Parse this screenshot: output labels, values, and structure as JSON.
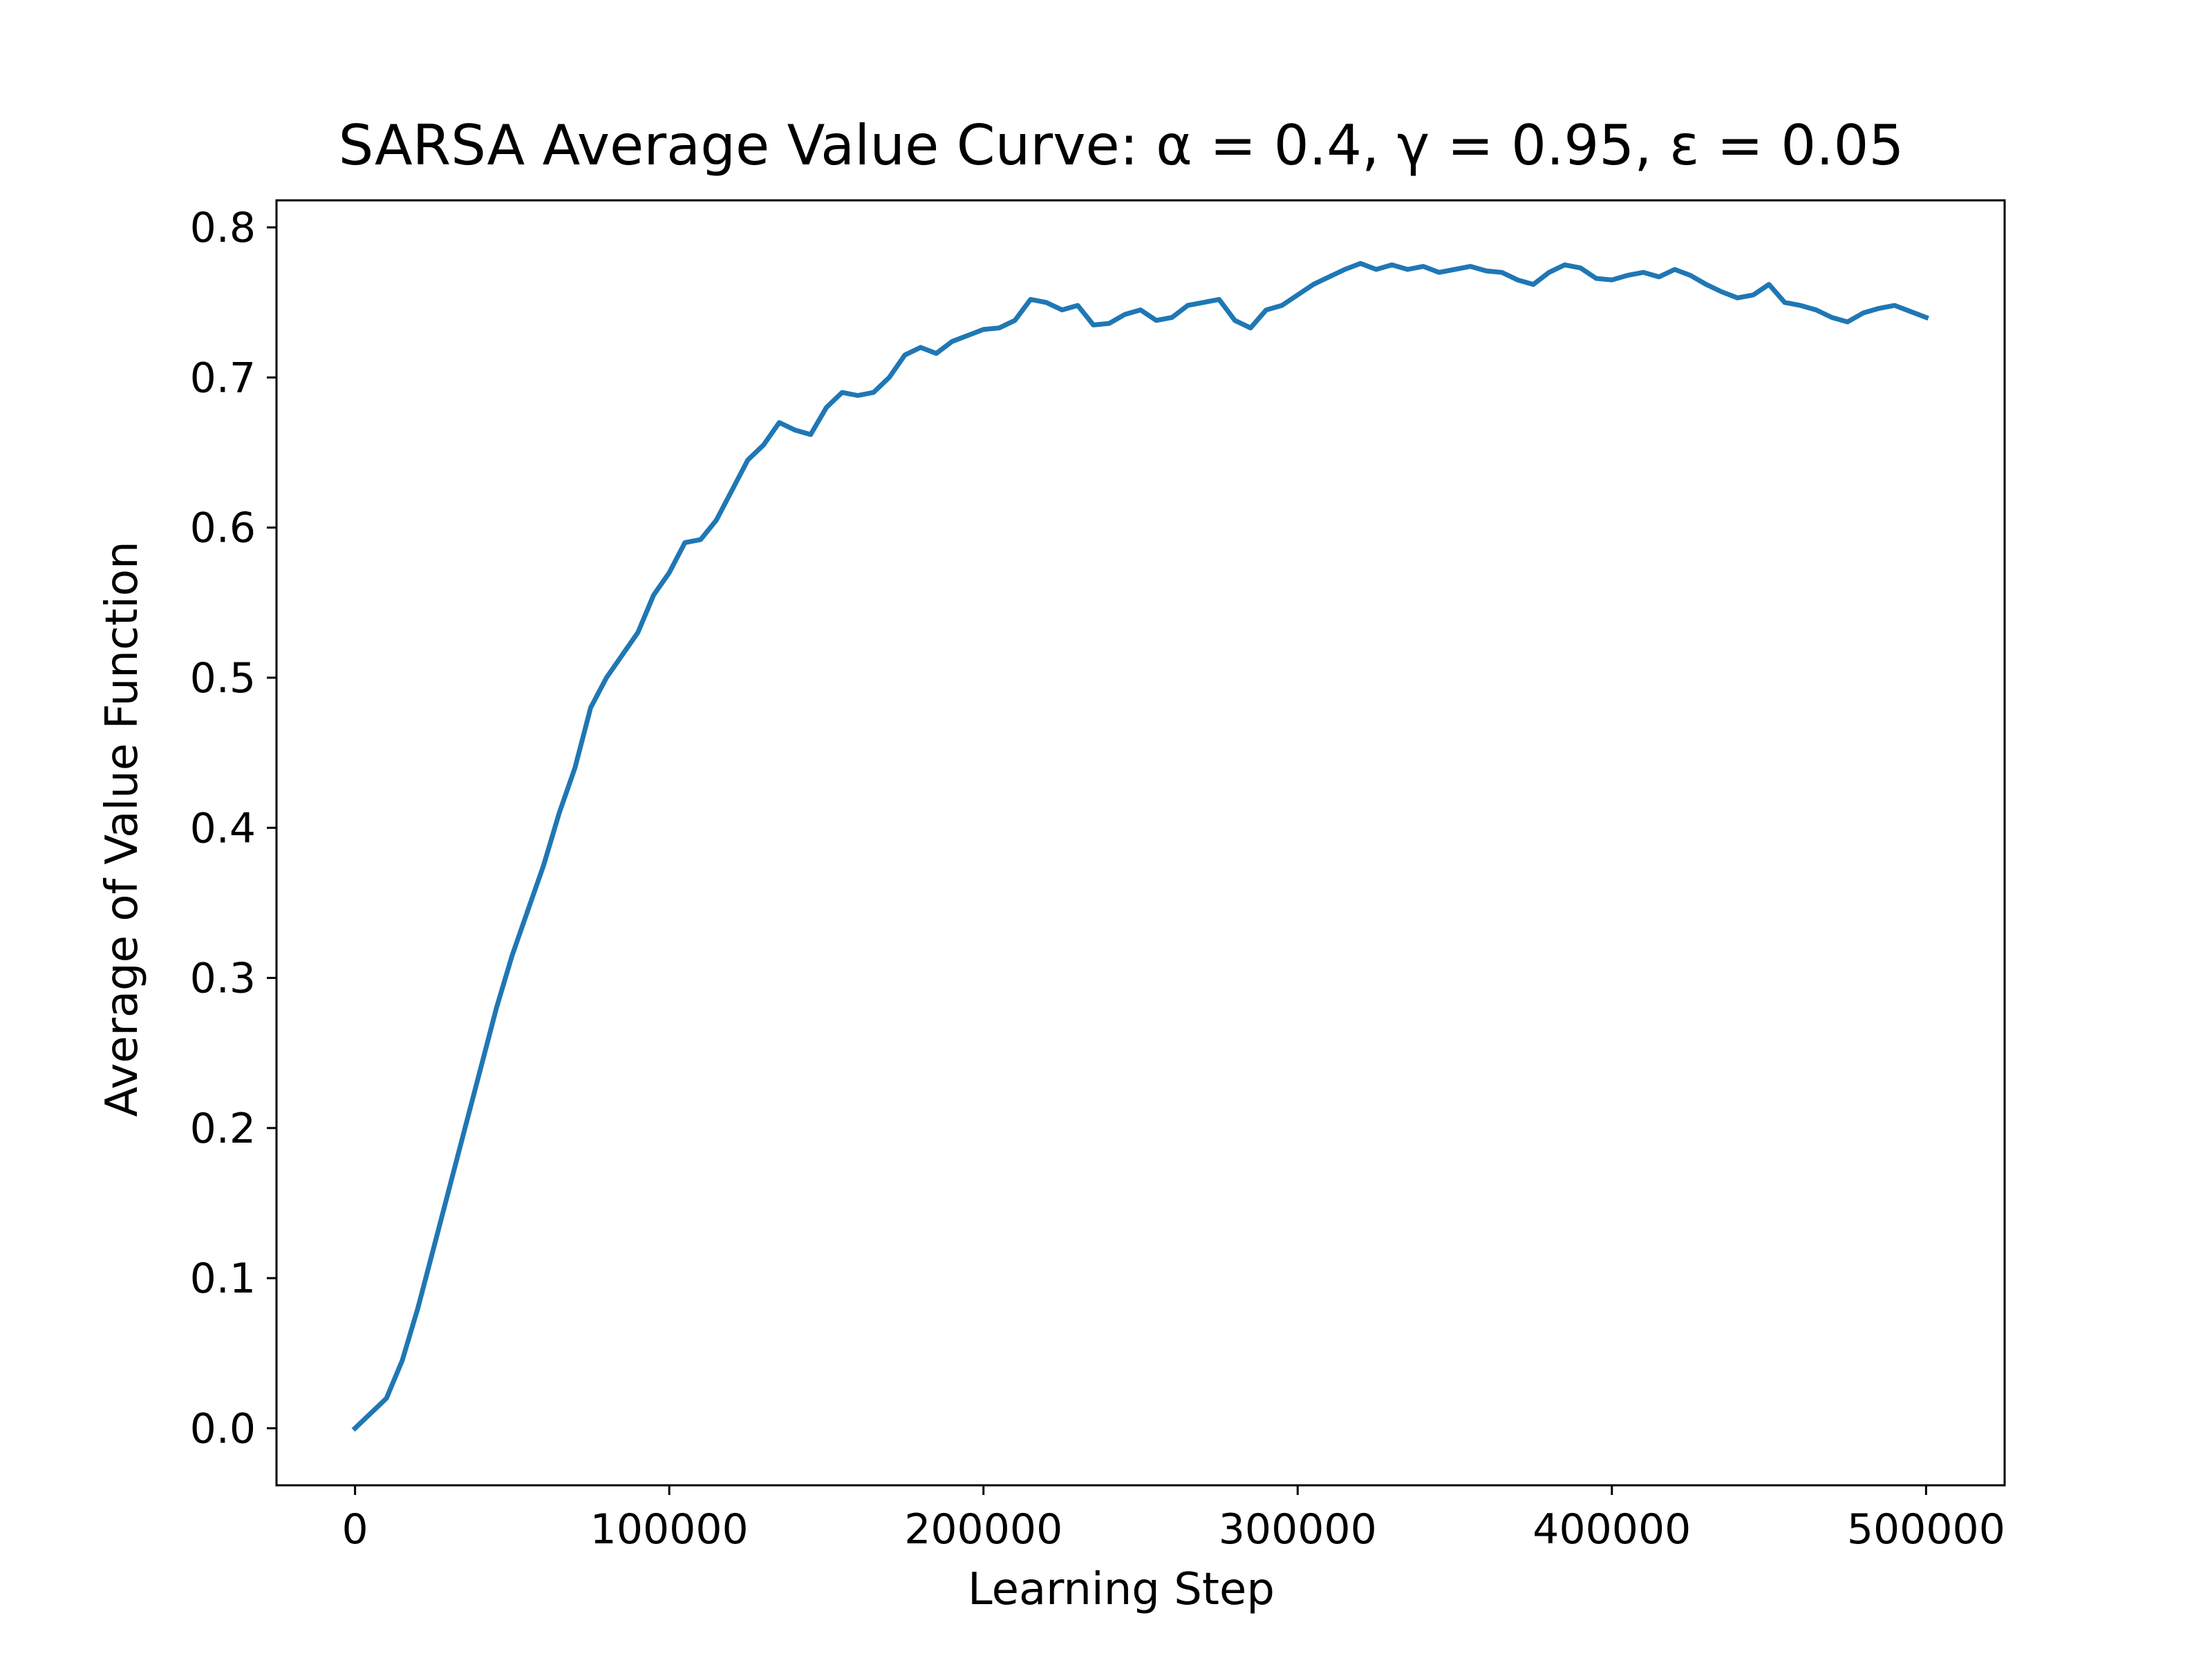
{
  "chart_data": {
    "type": "line",
    "title": "SARSA Average Value Curve: α = 0.4, γ = 0.95, ε = 0.05",
    "xlabel": "Learning Step",
    "ylabel": "Average of Value Function",
    "xlim": [
      -25000,
      525000
    ],
    "ylim": [
      -0.038,
      0.818
    ],
    "xticks": [
      0,
      100000,
      200000,
      300000,
      400000,
      500000
    ],
    "xtick_labels": [
      "0",
      "100000",
      "200000",
      "300000",
      "400000",
      "500000"
    ],
    "yticks": [
      0.0,
      0.1,
      0.2,
      0.3,
      0.4,
      0.5,
      0.6,
      0.7,
      0.8
    ],
    "ytick_labels": [
      "0.0",
      "0.1",
      "0.2",
      "0.3",
      "0.4",
      "0.5",
      "0.6",
      "0.7",
      "0.8"
    ],
    "grid": false,
    "legend": "none",
    "series_color": "#1f77b4",
    "series": [
      {
        "x": [
          0,
          5000,
          10000,
          15000,
          20000,
          25000,
          30000,
          35000,
          40000,
          45000,
          50000,
          55000,
          60000,
          65000,
          70000,
          75000,
          80000,
          85000,
          90000,
          95000,
          100000,
          105000,
          110000,
          115000,
          120000,
          125000,
          130000,
          135000,
          140000,
          145000,
          150000,
          155000,
          160000,
          165000,
          170000,
          175000,
          180000,
          185000,
          190000,
          195000,
          200000,
          205000,
          210000,
          215000,
          220000,
          225000,
          230000,
          235000,
          240000,
          245000,
          250000,
          255000,
          260000,
          265000,
          270000,
          275000,
          280000,
          285000,
          290000,
          295000,
          300000,
          305000,
          310000,
          315000,
          320000,
          325000,
          330000,
          335000,
          340000,
          345000,
          350000,
          355000,
          360000,
          365000,
          370000,
          375000,
          380000,
          385000,
          390000,
          395000,
          400000,
          405000,
          410000,
          415000,
          420000,
          425000,
          430000,
          435000,
          440000,
          445000,
          450000,
          455000,
          460000,
          465000,
          470000,
          475000,
          480000,
          485000,
          490000,
          495000,
          500000
        ],
        "y": [
          0.0,
          0.01,
          0.02,
          0.045,
          0.08,
          0.12,
          0.16,
          0.2,
          0.24,
          0.28,
          0.315,
          0.345,
          0.375,
          0.41,
          0.44,
          0.48,
          0.5,
          0.515,
          0.53,
          0.555,
          0.57,
          0.59,
          0.592,
          0.605,
          0.625,
          0.645,
          0.655,
          0.67,
          0.665,
          0.662,
          0.68,
          0.69,
          0.688,
          0.69,
          0.7,
          0.715,
          0.72,
          0.716,
          0.724,
          0.728,
          0.732,
          0.733,
          0.738,
          0.752,
          0.75,
          0.745,
          0.748,
          0.735,
          0.736,
          0.742,
          0.745,
          0.738,
          0.74,
          0.748,
          0.75,
          0.752,
          0.738,
          0.733,
          0.745,
          0.748,
          0.755,
          0.762,
          0.767,
          0.772,
          0.776,
          0.772,
          0.775,
          0.772,
          0.774,
          0.77,
          0.772,
          0.774,
          0.771,
          0.77,
          0.765,
          0.762,
          0.77,
          0.775,
          0.773,
          0.766,
          0.765,
          0.768,
          0.77,
          0.767,
          0.772,
          0.768,
          0.762,
          0.757,
          0.753,
          0.755,
          0.762,
          0.75,
          0.748,
          0.745,
          0.74,
          0.737,
          0.743,
          0.746,
          0.748,
          0.744,
          0.74
        ]
      }
    ]
  }
}
